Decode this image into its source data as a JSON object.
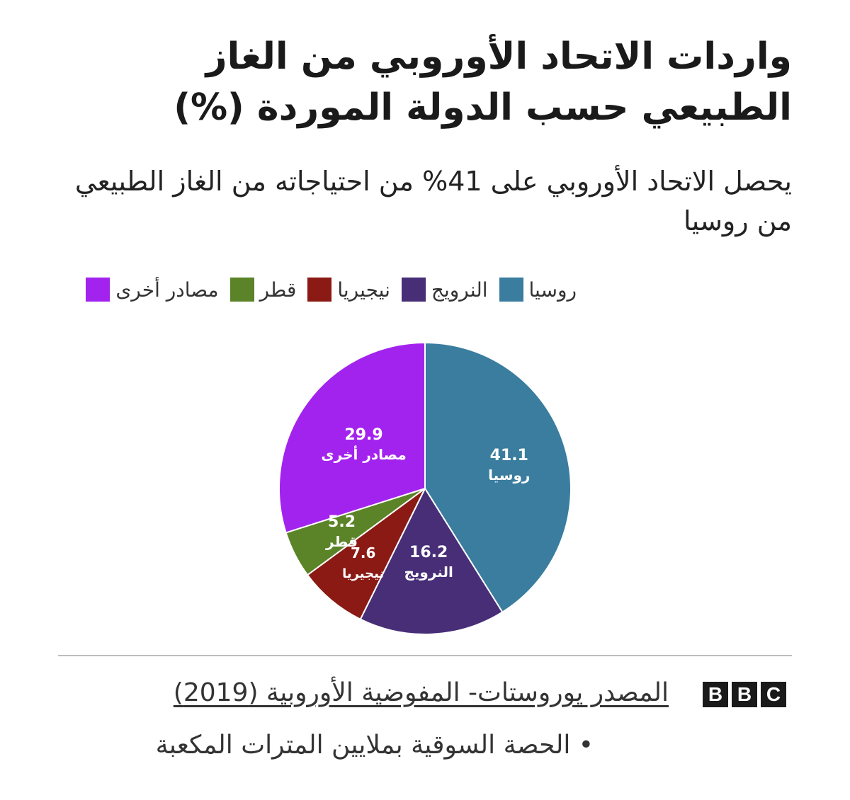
{
  "header": {
    "title": "واردات الاتحاد الأوروبي من الغاز الطبيعي حسب الدولة الموردة (%)",
    "subtitle": "يحصل الاتحاد الأوروبي على 41% من احتياجاته من الغاز الطبيعي من روسيا"
  },
  "chart_data": {
    "type": "pie",
    "categories": [
      "روسيا",
      "النرويج",
      "نيجيريا",
      "قطر",
      "مصادر أخرى"
    ],
    "values": [
      41.1,
      16.2,
      7.6,
      5.2,
      29.9
    ],
    "value_labels": [
      "41.1",
      "16.2",
      "7.6",
      "5.2",
      "29.9"
    ],
    "colors": [
      "#3a7d9e",
      "#472e77",
      "#8b1a14",
      "#5b8428",
      "#a323ee"
    ],
    "legend_position": "top-right",
    "start_angle": "12 o'clock",
    "direction": "clockwise"
  },
  "footer": {
    "logo_letters": [
      "B",
      "B",
      "C"
    ],
    "source": "المصدر يوروستات- المفوضية الأوروبية (2019)",
    "note": "• الحصة السوقية بملايين المترات المكعبة"
  }
}
